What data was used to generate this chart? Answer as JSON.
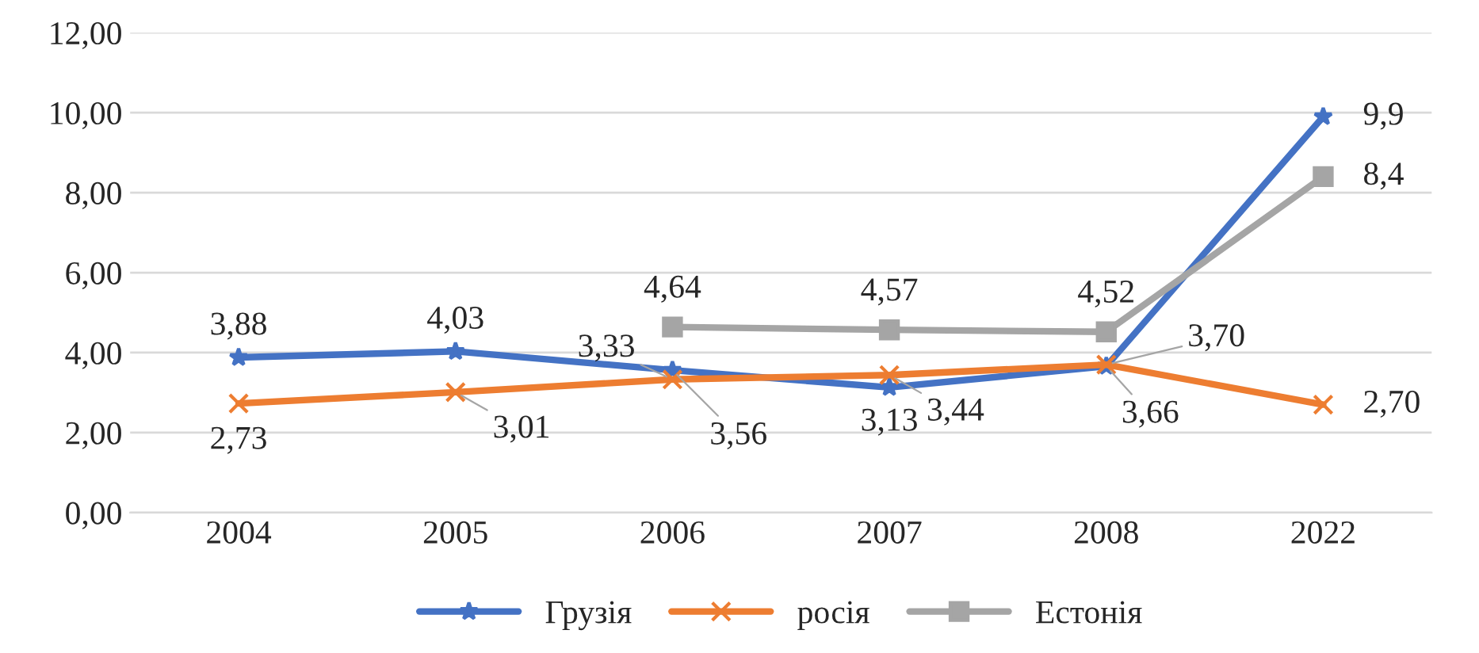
{
  "chart_data": {
    "type": "line",
    "categories": [
      "2004",
      "2005",
      "2006",
      "2007",
      "2008",
      "2022"
    ],
    "series": [
      {
        "name": "Грузія",
        "color": "#4472c4",
        "marker": "star",
        "values": [
          3.88,
          4.03,
          3.56,
          3.13,
          3.66,
          9.9
        ],
        "value_labels": [
          "3,88",
          "4,03",
          "3,56",
          "3,13",
          "3,66",
          "9,9"
        ]
      },
      {
        "name": "росія",
        "color": "#ed7d31",
        "marker": "cross",
        "values": [
          2.73,
          3.01,
          3.33,
          3.44,
          3.7,
          2.7
        ],
        "value_labels": [
          "2,73",
          "3,01",
          "3,33",
          "3,44",
          "3,70",
          "2,70"
        ]
      },
      {
        "name": "Естонія",
        "color": "#a5a5a5",
        "marker": "square",
        "values": [
          null,
          null,
          4.64,
          4.57,
          4.52,
          8.4
        ],
        "value_labels": [
          null,
          null,
          "4,64",
          "4,57",
          "4,52",
          "8,4"
        ]
      }
    ],
    "ylim": [
      0,
      12
    ],
    "yticks": [
      {
        "value": 0,
        "label": "0,00"
      },
      {
        "value": 2,
        "label": "2,00"
      },
      {
        "value": 4,
        "label": "4,00"
      },
      {
        "value": 6,
        "label": "6,00"
      },
      {
        "value": 8,
        "label": "8,00"
      },
      {
        "value": 10,
        "label": "10,00"
      },
      {
        "value": 12,
        "label": "12,00"
      }
    ],
    "grid": "y",
    "legend": "bottom",
    "line_style": "solid"
  }
}
